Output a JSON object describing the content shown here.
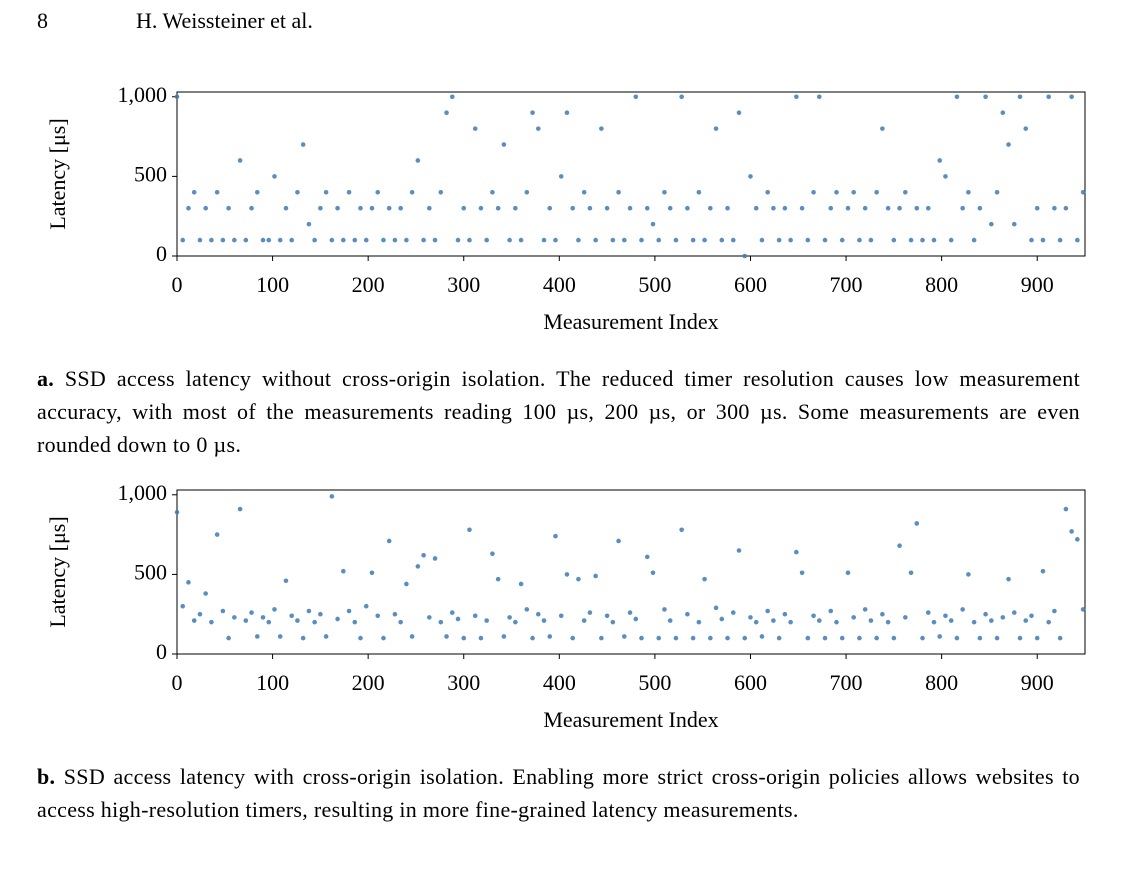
{
  "header": {
    "page_number": "8",
    "authors": "H. Weissteiner et al."
  },
  "chart_data": [
    {
      "type": "scatter",
      "x_label": "Measurement Index",
      "y_label": "Latency [μs]",
      "color": "#3d7ab3",
      "xlim": [
        0,
        950
      ],
      "ylim": [
        0,
        1030
      ],
      "xticks": [
        0,
        100,
        200,
        300,
        400,
        500,
        600,
        700,
        800,
        900
      ],
      "yticks": [
        0,
        500,
        {
          "value": 1000,
          "label": "1,000"
        }
      ],
      "x": [
        0,
        6,
        12,
        18,
        24,
        30,
        36,
        42,
        48,
        54,
        60,
        66,
        72,
        78,
        84,
        90,
        96,
        102,
        108,
        114,
        120,
        126,
        132,
        138,
        144,
        150,
        156,
        162,
        168,
        174,
        180,
        186,
        192,
        198,
        204,
        210,
        216,
        222,
        228,
        234,
        240,
        246,
        252,
        258,
        264,
        270,
        276,
        282,
        288,
        294,
        300,
        306,
        312,
        318,
        324,
        330,
        336,
        342,
        348,
        354,
        360,
        366,
        372,
        378,
        384,
        390,
        396,
        402,
        408,
        414,
        420,
        426,
        432,
        438,
        444,
        450,
        456,
        462,
        468,
        474,
        480,
        486,
        492,
        498,
        504,
        510,
        516,
        522,
        528,
        534,
        540,
        546,
        552,
        558,
        564,
        570,
        576,
        582,
        588,
        594,
        600,
        606,
        612,
        618,
        624,
        630,
        636,
        642,
        648,
        654,
        660,
        666,
        672,
        678,
        684,
        690,
        696,
        702,
        708,
        714,
        720,
        726,
        732,
        738,
        744,
        750,
        756,
        762,
        768,
        774,
        780,
        786,
        792,
        798,
        804,
        810,
        816,
        822,
        828,
        834,
        840,
        846,
        852,
        858,
        864,
        870,
        876,
        882,
        888,
        894,
        900,
        906,
        912,
        918,
        924,
        930,
        936,
        942,
        948
      ],
      "values": [
        1000,
        100,
        300,
        400,
        100,
        300,
        100,
        400,
        100,
        300,
        100,
        600,
        100,
        300,
        400,
        100,
        100,
        500,
        100,
        300,
        100,
        400,
        700,
        200,
        100,
        300,
        400,
        100,
        300,
        100,
        400,
        100,
        300,
        100,
        300,
        400,
        100,
        300,
        100,
        300,
        100,
        400,
        600,
        100,
        300,
        100,
        400,
        900,
        1000,
        100,
        300,
        100,
        800,
        300,
        100,
        400,
        300,
        700,
        100,
        300,
        100,
        400,
        900,
        800,
        100,
        300,
        100,
        500,
        900,
        300,
        100,
        400,
        300,
        100,
        800,
        300,
        100,
        400,
        100,
        300,
        1000,
        100,
        300,
        200,
        100,
        400,
        300,
        100,
        1000,
        300,
        100,
        400,
        100,
        300,
        800,
        100,
        300,
        100,
        900,
        0,
        500,
        300,
        100,
        400,
        300,
        100,
        300,
        100,
        1000,
        300,
        100,
        400,
        1000,
        100,
        300,
        400,
        100,
        300,
        400,
        100,
        300,
        100,
        400,
        800,
        300,
        100,
        300,
        400,
        100,
        300,
        100,
        300,
        100,
        600,
        500,
        100,
        1000,
        300,
        400,
        100,
        300,
        1000,
        200,
        400,
        900,
        700,
        200,
        1000,
        800,
        100,
        300,
        100,
        1000,
        300,
        100,
        300,
        1000,
        100,
        400
      ]
    },
    {
      "type": "scatter",
      "x_label": "Measurement Index",
      "y_label": "Latency [μs]",
      "color": "#3d7ab3",
      "xlim": [
        0,
        950
      ],
      "ylim": [
        0,
        1030
      ],
      "xticks": [
        0,
        100,
        200,
        300,
        400,
        500,
        600,
        700,
        800,
        900
      ],
      "yticks": [
        0,
        500,
        {
          "value": 1000,
          "label": "1,000"
        }
      ],
      "x": [
        0,
        6,
        12,
        18,
        24,
        30,
        36,
        42,
        48,
        54,
        60,
        66,
        72,
        78,
        84,
        90,
        96,
        102,
        108,
        114,
        120,
        126,
        132,
        138,
        144,
        150,
        156,
        162,
        168,
        174,
        180,
        186,
        192,
        198,
        204,
        210,
        216,
        222,
        228,
        234,
        240,
        246,
        252,
        258,
        264,
        270,
        276,
        282,
        288,
        294,
        300,
        306,
        312,
        318,
        324,
        330,
        336,
        342,
        348,
        354,
        360,
        366,
        372,
        378,
        384,
        390,
        396,
        402,
        408,
        414,
        420,
        426,
        432,
        438,
        444,
        450,
        456,
        462,
        468,
        474,
        480,
        486,
        492,
        498,
        504,
        510,
        516,
        522,
        528,
        534,
        540,
        546,
        552,
        558,
        564,
        570,
        576,
        582,
        588,
        594,
        600,
        606,
        612,
        618,
        624,
        630,
        636,
        642,
        648,
        654,
        660,
        666,
        672,
        678,
        684,
        690,
        696,
        702,
        708,
        714,
        720,
        726,
        732,
        738,
        744,
        750,
        756,
        762,
        768,
        774,
        780,
        786,
        792,
        798,
        804,
        810,
        816,
        822,
        828,
        834,
        840,
        846,
        852,
        858,
        864,
        870,
        876,
        882,
        888,
        894,
        900,
        906,
        912,
        918,
        924,
        930,
        936,
        942,
        948
      ],
      "values": [
        890,
        300,
        450,
        210,
        250,
        380,
        200,
        750,
        270,
        100,
        230,
        910,
        210,
        260,
        110,
        230,
        200,
        280,
        110,
        460,
        240,
        210,
        100,
        270,
        200,
        250,
        110,
        990,
        220,
        520,
        270,
        200,
        100,
        300,
        510,
        240,
        100,
        710,
        250,
        200,
        440,
        110,
        550,
        620,
        230,
        600,
        200,
        110,
        260,
        220,
        100,
        780,
        240,
        100,
        210,
        630,
        470,
        110,
        230,
        200,
        440,
        280,
        100,
        250,
        210,
        110,
        740,
        240,
        500,
        100,
        470,
        210,
        260,
        490,
        100,
        240,
        200,
        710,
        110,
        260,
        220,
        100,
        610,
        510,
        100,
        280,
        210,
        100,
        780,
        250,
        100,
        200,
        470,
        100,
        290,
        220,
        100,
        260,
        650,
        100,
        230,
        200,
        110,
        270,
        210,
        100,
        250,
        200,
        640,
        510,
        100,
        240,
        210,
        100,
        270,
        200,
        100,
        510,
        230,
        100,
        280,
        210,
        100,
        250,
        200,
        100,
        680,
        230,
        510,
        820,
        100,
        260,
        200,
        110,
        240,
        210,
        100,
        280,
        500,
        200,
        100,
        250,
        210,
        100,
        230,
        470,
        260,
        100,
        210,
        240,
        100,
        520,
        200,
        270,
        100,
        910,
        770,
        720,
        280
      ]
    }
  ],
  "captions": [
    {
      "label": "a.",
      "text": "SSD access latency without cross-origin isolation. The reduced timer resolution causes low measurement accuracy, with most of the measurements reading 100 µs, 200 µs, or 300 µs. Some measurements are even rounded down to 0 µs."
    },
    {
      "label": "b.",
      "text": "SSD access latency with cross-origin isolation. Enabling more strict cross-origin policies allows websites to access high-resolution timers, resulting in more fine-grained latency measurements."
    }
  ]
}
